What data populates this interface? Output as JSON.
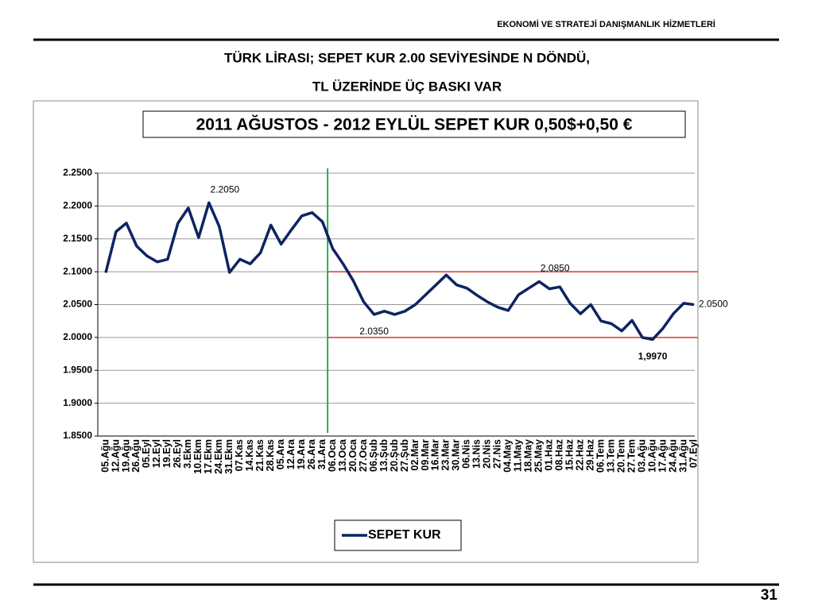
{
  "header": "EKONOMİ VE STRATEJİ DANIŞMANLIK HİZMETLERİ",
  "title_lines": [
    "TÜRK LİRASI;  SEPET KUR 2.00 SEVİYESİNDE N DÖNDÜ,",
    "TL ÜZERİNDE ÜÇ BASKI  VAR"
  ],
  "page_number": "31",
  "chart_data": {
    "type": "line",
    "title": "2011 AĞUSTOS -  2012 EYLÜL SEPET KUR 0,50$+0,50 €",
    "categories": [
      "05.Ağu",
      "12.Ağu",
      "19.Ağu",
      "26.Ağu",
      "05.Eyl",
      "12.Eyl",
      "19.Eyl",
      "26.Eyl",
      "3.Ekm",
      "10.Ekm",
      "17.Ekm",
      "24.Ekm",
      "31.Ekm",
      "07.Kas",
      "14.Kas",
      "21.Kas",
      "28.Kas",
      "05.Ara",
      "12.Ara",
      "19.Ara",
      "26.Ara",
      "31.Ara",
      "06.Oca",
      "13.Oca",
      "20.Oca",
      "27.Oca",
      "06.Şub",
      "13.Şub",
      "20.Şub",
      "27.Şub",
      "02.Mar",
      "09.Mar",
      "16.Mar",
      "23.Mar",
      "30.Mar",
      "06.Nis",
      "13.Nis",
      "20.Nis",
      "27.Nis",
      "04.May",
      "11.May",
      "18.May",
      "25.May",
      "01.Haz",
      "08.Haz",
      "15.Haz",
      "22.Haz",
      "29.Haz",
      "06.Tem",
      "13.Tem",
      "20.Tem",
      "27.Tem",
      "03.Ağu",
      "10.Ağu",
      "17.Ağu",
      "24.Ağu",
      "31.Ağu",
      "07.Eyl"
    ],
    "series": [
      {
        "name": "SEPET KUR",
        "color": "#0d2461",
        "values": [
          2.0985,
          2.161,
          2.174,
          2.139,
          2.124,
          2.115,
          2.119,
          2.174,
          2.197,
          2.152,
          2.205,
          2.169,
          2.099,
          2.119,
          2.112,
          2.129,
          2.171,
          2.142,
          2.164,
          2.185,
          2.19,
          2.176,
          2.135,
          2.112,
          2.086,
          2.054,
          2.035,
          2.04,
          2.035,
          2.04,
          2.05,
          2.065,
          2.08,
          2.095,
          2.08,
          2.075,
          2.064,
          2.054,
          2.046,
          2.041,
          2.065,
          2.075,
          2.085,
          2.074,
          2.077,
          2.052,
          2.036,
          2.05,
          2.025,
          2.021,
          2.01,
          2.026,
          2.0,
          1.997,
          2.014,
          2.036,
          2.052,
          2.05
        ],
        "value_labels": [
          null,
          null,
          null,
          null,
          null,
          null,
          null,
          null,
          null,
          null,
          "2.2050",
          null,
          null,
          null,
          null,
          null,
          null,
          null,
          null,
          null,
          null,
          null,
          null,
          null,
          null,
          null,
          "2.0350",
          null,
          null,
          null,
          null,
          null,
          null,
          null,
          null,
          null,
          null,
          null,
          null,
          null,
          null,
          null,
          "2.0850",
          null,
          null,
          null,
          null,
          null,
          null,
          null,
          null,
          null,
          null,
          "1,9970",
          null,
          null,
          null,
          "2.0500"
        ]
      }
    ],
    "ylim": [
      1.85,
      2.25
    ],
    "yticks": [
      {
        "value": 1.85,
        "label": "1.8500"
      },
      {
        "value": 1.9,
        "label": "1.9000"
      },
      {
        "value": 1.95,
        "label": "1.9500"
      },
      {
        "value": 2.0,
        "label": "2.0000"
      },
      {
        "value": 2.05,
        "label": "2.0500"
      },
      {
        "value": 2.1,
        "label": "2.1000"
      },
      {
        "value": 2.15,
        "label": "2.1500"
      },
      {
        "value": 2.2,
        "label": "2.2000"
      },
      {
        "value": 2.25,
        "label": "2.2500"
      }
    ],
    "grid": true,
    "legend": "bottom",
    "reference_lines": [
      {
        "value": 2.1,
        "color": "#e8332a"
      },
      {
        "value": 2.0,
        "color": "#e8332a"
      }
    ],
    "vertical_line": {
      "after": "31.Ara",
      "color": "#22b14c"
    }
  }
}
